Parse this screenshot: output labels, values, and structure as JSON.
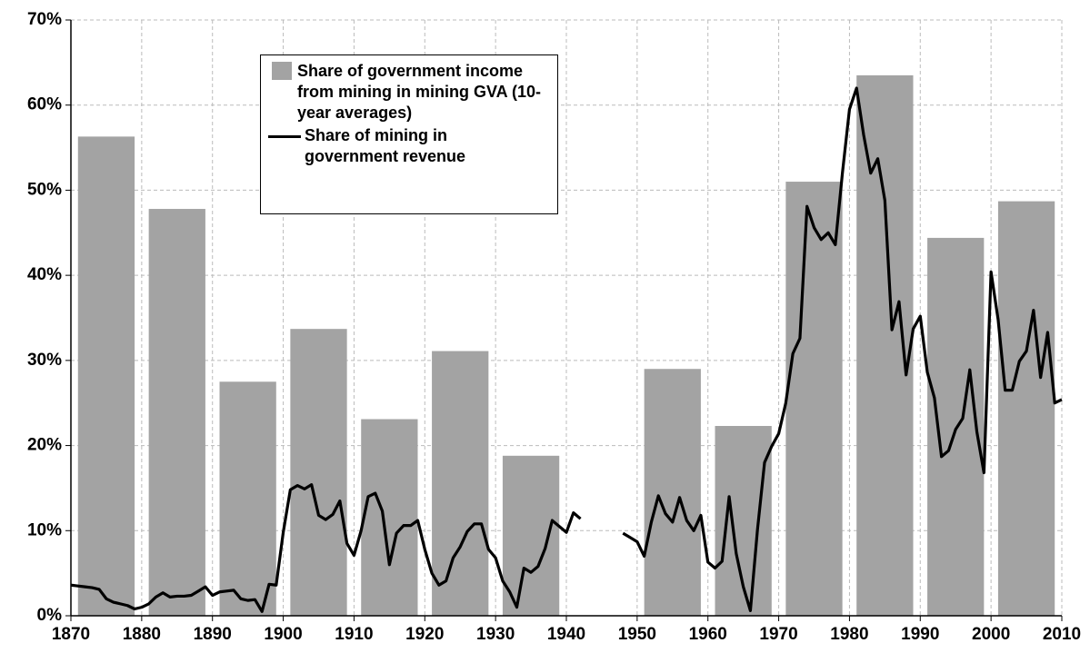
{
  "chart_data": {
    "type": "combo",
    "xlim": [
      1870,
      2010
    ],
    "xticks": [
      1870,
      1880,
      1890,
      1900,
      1910,
      1920,
      1930,
      1940,
      1950,
      1960,
      1970,
      1980,
      1990,
      2000,
      2010
    ],
    "ylim": [
      0,
      70
    ],
    "yticks": [
      {
        "value": 0,
        "label": "0%"
      },
      {
        "value": 10,
        "label": "10%"
      },
      {
        "value": 20,
        "label": "20%"
      },
      {
        "value": 30,
        "label": "30%"
      },
      {
        "value": 40,
        "label": "40%"
      },
      {
        "value": 50,
        "label": "50%"
      },
      {
        "value": 60,
        "label": "60%"
      },
      {
        "value": 70,
        "label": "70%"
      }
    ],
    "grid": true,
    "legend": "top-left",
    "series": [
      {
        "name": "Share of government income from mining in mining GVA (10-year averages)",
        "type": "bar",
        "color": "#a3a3a3",
        "x": [
          1875,
          1885,
          1895,
          1905,
          1915,
          1925,
          1935,
          1945,
          1955,
          1965,
          1975,
          1985,
          1995,
          2005
        ],
        "values": [
          56.3,
          47.8,
          27.5,
          33.7,
          23.1,
          31.1,
          18.8,
          null,
          29.0,
          22.3,
          51.0,
          63.5,
          44.4,
          48.7
        ]
      },
      {
        "name": "Share of mining in government revenue",
        "type": "line",
        "color": "#000000",
        "x": [
          1870,
          1871,
          1872,
          1873,
          1874,
          1875,
          1876,
          1877,
          1878,
          1879,
          1880,
          1881,
          1882,
          1883,
          1884,
          1885,
          1886,
          1887,
          1888,
          1889,
          1890,
          1891,
          1892,
          1893,
          1894,
          1895,
          1896,
          1897,
          1898,
          1899,
          1900,
          1901,
          1902,
          1903,
          1904,
          1905,
          1906,
          1907,
          1908,
          1909,
          1910,
          1911,
          1912,
          1913,
          1914,
          1915,
          1916,
          1917,
          1918,
          1919,
          1920,
          1921,
          1922,
          1923,
          1924,
          1925,
          1926,
          1927,
          1928,
          1929,
          1930,
          1931,
          1932,
          1933,
          1934,
          1935,
          1936,
          1937,
          1938,
          1939,
          1940,
          1941,
          1942,
          1943,
          1944,
          1945,
          1946,
          1947,
          1948,
          1949,
          1950,
          1951,
          1952,
          1953,
          1954,
          1955,
          1956,
          1957,
          1958,
          1959,
          1960,
          1961,
          1962,
          1963,
          1964,
          1965,
          1966,
          1967,
          1968,
          1969,
          1970,
          1971,
          1972,
          1973,
          1974,
          1975,
          1976,
          1977,
          1978,
          1979,
          1980,
          1981,
          1982,
          1983,
          1984,
          1985,
          1986,
          1987,
          1988,
          1989,
          1990,
          1991,
          1992,
          1993,
          1994,
          1995,
          1996,
          1997,
          1998,
          1999,
          2000,
          2001,
          2002,
          2003,
          2004,
          2005,
          2006,
          2007,
          2008,
          2009,
          2010
        ],
        "values": [
          3.6,
          3.5,
          3.4,
          3.3,
          3.1,
          2.0,
          1.6,
          1.4,
          1.2,
          0.8,
          1.0,
          1.4,
          2.2,
          2.7,
          2.2,
          2.3,
          2.3,
          2.4,
          2.9,
          3.4,
          2.4,
          2.8,
          2.9,
          3.0,
          2.0,
          1.8,
          1.9,
          0.5,
          3.7,
          3.6,
          9.8,
          14.8,
          15.3,
          14.9,
          15.4,
          11.8,
          11.3,
          11.9,
          13.5,
          8.5,
          7.1,
          10.0,
          14.0,
          14.4,
          12.3,
          6.0,
          9.7,
          10.6,
          10.6,
          11.2,
          7.8,
          5.0,
          3.6,
          4.1,
          6.8,
          8.1,
          9.9,
          10.8,
          10.8,
          7.8,
          6.8,
          4.1,
          2.8,
          1.0,
          5.6,
          5.1,
          5.8,
          7.9,
          11.2,
          10.5,
          9.8,
          12.1,
          11.4,
          null,
          null,
          null,
          null,
          null,
          9.7,
          9.2,
          8.7,
          7.0,
          11.0,
          14.1,
          12.0,
          11.0,
          13.9,
          11.2,
          10.0,
          11.8,
          6.3,
          5.6,
          6.4,
          14.0,
          7.3,
          3.4,
          0.6,
          10.1,
          18.0,
          19.9,
          21.4,
          25.0,
          30.8,
          32.6,
          48.1,
          45.6,
          44.2,
          45.0,
          43.6,
          52.0,
          59.5,
          62.0,
          56.5,
          52.0,
          53.7,
          48.8,
          33.6,
          36.9,
          28.3,
          33.7,
          35.2,
          28.6,
          25.6,
          18.7,
          19.4,
          21.9,
          23.2,
          28.9,
          21.6,
          16.8,
          40.4,
          34.8,
          26.5,
          26.5,
          29.9,
          31.1,
          35.9,
          28.0,
          33.3,
          25.0,
          25.4
        ]
      }
    ]
  }
}
